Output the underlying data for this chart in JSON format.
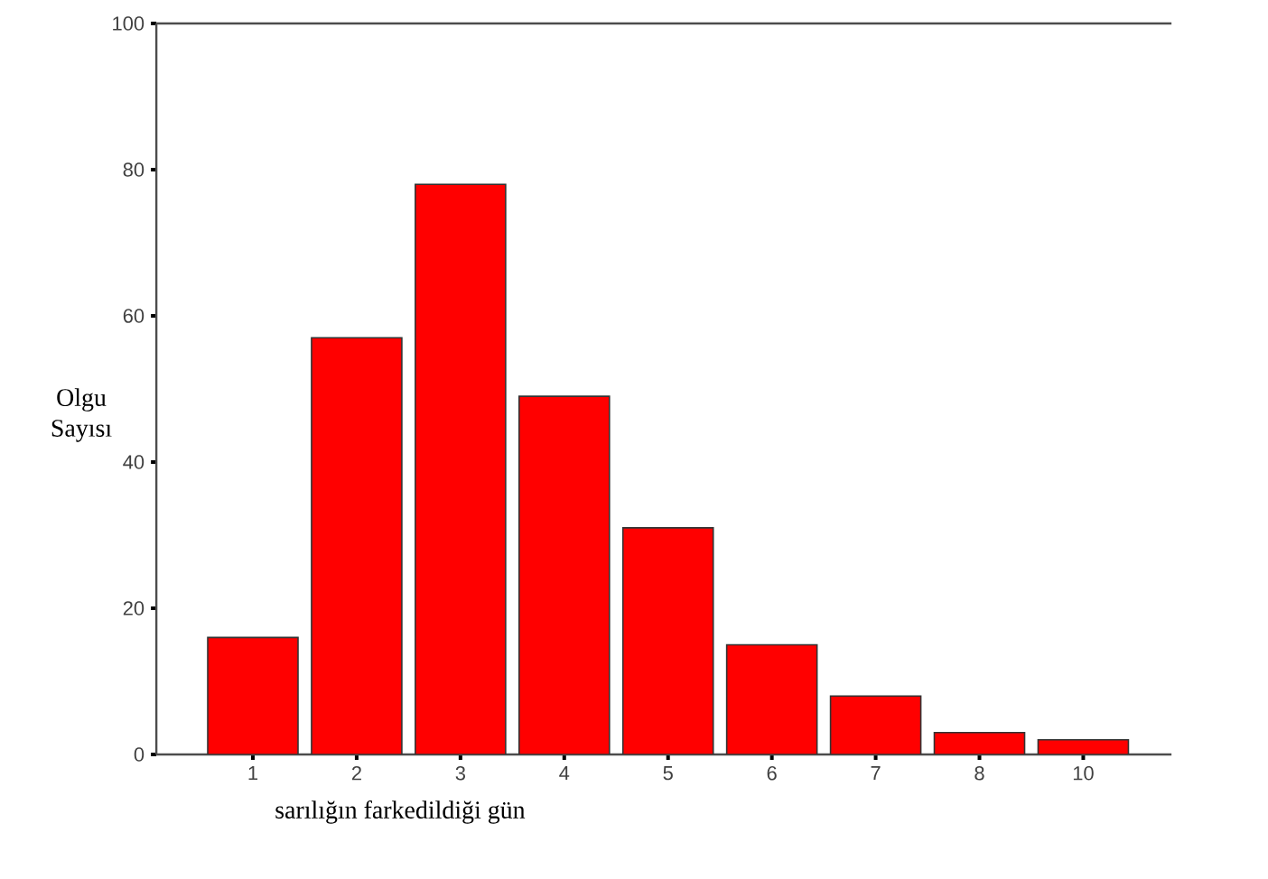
{
  "chart_data": {
    "type": "bar",
    "xlabel": "sarılığın farkedildiği gün",
    "ylabel": "Olgu Sayısı",
    "categories": [
      "1",
      "2",
      "3",
      "4",
      "5",
      "6",
      "7",
      "8",
      "10"
    ],
    "values": [
      16,
      57,
      78,
      49,
      31,
      15,
      8,
      3,
      2
    ],
    "color": "#ff0000",
    "ylim": [
      0,
      100
    ],
    "yticks": [
      0,
      20,
      40,
      60,
      80,
      100
    ],
    "grid": false
  }
}
